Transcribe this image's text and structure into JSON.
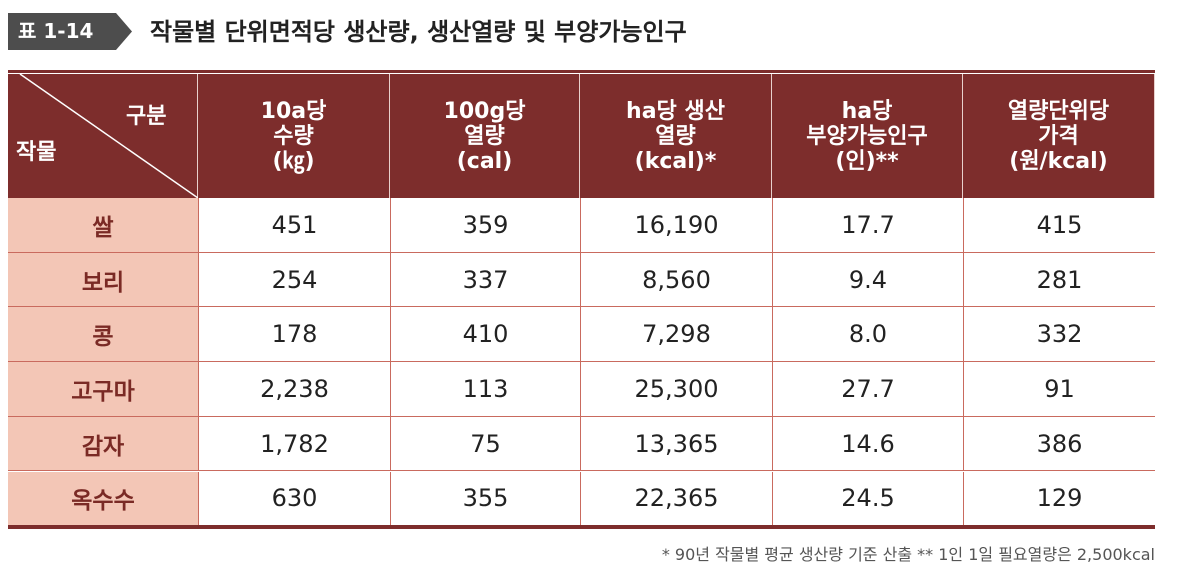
{
  "header": {
    "label": "표 1-14",
    "title": "작물별 단위면적당 생산량, 생산열량 및 부양가능인구"
  },
  "table": {
    "corner": {
      "top": "구분",
      "bottom": "작물"
    },
    "columns": [
      [
        "10a당",
        "수량",
        "(㎏)"
      ],
      [
        "100g당",
        "열량",
        "(cal)"
      ],
      [
        "ha당 생산",
        "열량",
        "(kcal)*"
      ],
      [
        "ha당",
        "부양가능인구",
        "(인)**"
      ],
      [
        "열량단위당",
        "가격",
        "(원/kcal)"
      ]
    ],
    "rows": [
      [
        "쌀",
        "451",
        "359",
        "16,190",
        "17.7",
        "415"
      ],
      [
        "보리",
        "254",
        "337",
        "8,560",
        "9.4",
        "281"
      ],
      [
        "콩",
        "178",
        "410",
        "7,298",
        "8.0",
        "332"
      ],
      [
        "고구마",
        "2,238",
        "113",
        "25,300",
        "27.7",
        "91"
      ],
      [
        "감자",
        "1,782",
        "75",
        "13,365",
        "14.6",
        "386"
      ],
      [
        "옥수수",
        "630",
        "355",
        "22,365",
        "24.5",
        "129"
      ]
    ]
  },
  "footnote": "* 90년 작물별 평균 생산량 기준 산출 ** 1인 1일 필요열량은 2,500kcal"
}
